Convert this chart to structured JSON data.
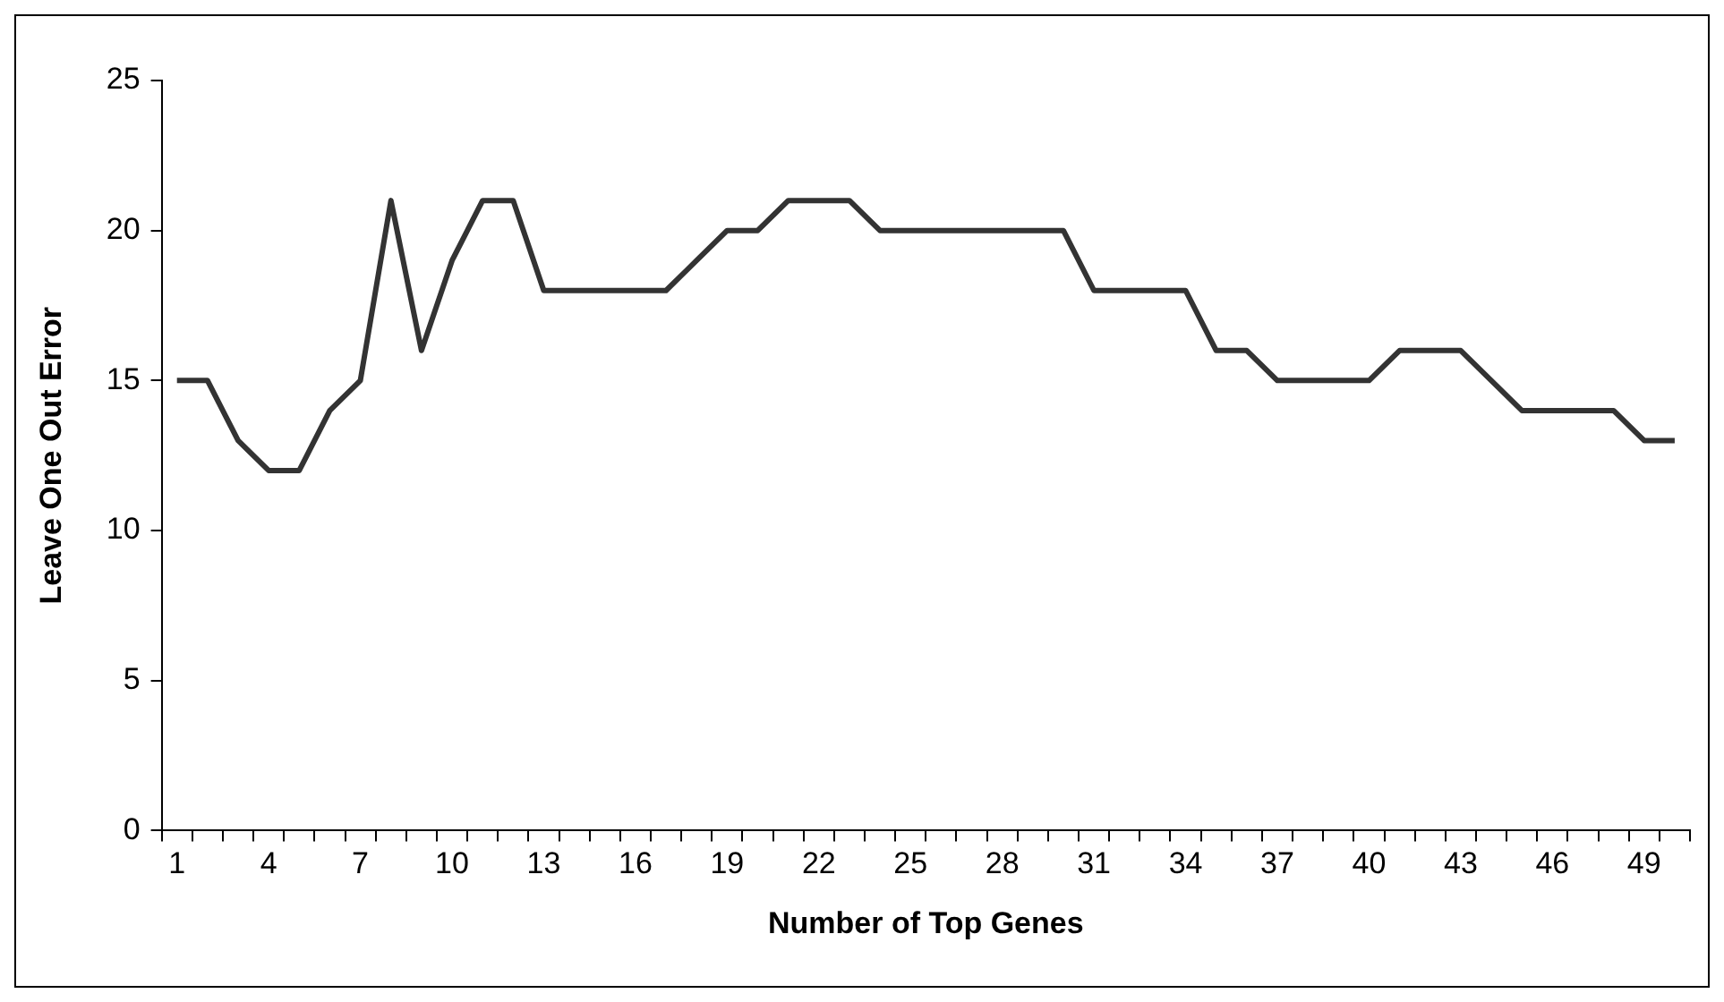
{
  "chart_data": {
    "type": "line",
    "xlabel": "Number of Top Genes",
    "ylabel": "Leave One Out Error",
    "categories": [
      "1",
      null,
      null,
      "4",
      null,
      null,
      "7",
      null,
      null,
      "10",
      null,
      null,
      "13",
      null,
      null,
      "16",
      null,
      null,
      "19",
      null,
      null,
      "22",
      null,
      null,
      "25",
      null,
      null,
      "28",
      null,
      null,
      "31",
      null,
      null,
      "34",
      null,
      null,
      "37",
      null,
      null,
      "40",
      null,
      null,
      "43",
      null,
      null,
      "46",
      null,
      null,
      "49",
      null
    ],
    "series": [
      {
        "color": "#333333",
        "values": [
          15,
          15,
          13,
          12,
          12,
          14,
          15,
          21,
          16,
          19,
          21,
          21,
          18,
          18,
          18,
          18,
          18,
          19,
          20,
          20,
          21,
          21,
          21,
          20,
          20,
          20,
          20,
          20,
          20,
          20,
          18,
          18,
          18,
          18,
          16,
          16,
          15,
          15,
          15,
          15,
          16,
          16,
          16,
          15,
          14,
          14,
          14,
          14,
          13,
          13
        ]
      }
    ],
    "ylim": [
      0,
      25
    ],
    "yticks": [
      0,
      5,
      10,
      15,
      20,
      25
    ],
    "grid": false,
    "legend": false,
    "marker": "none",
    "line_style": "solid"
  }
}
